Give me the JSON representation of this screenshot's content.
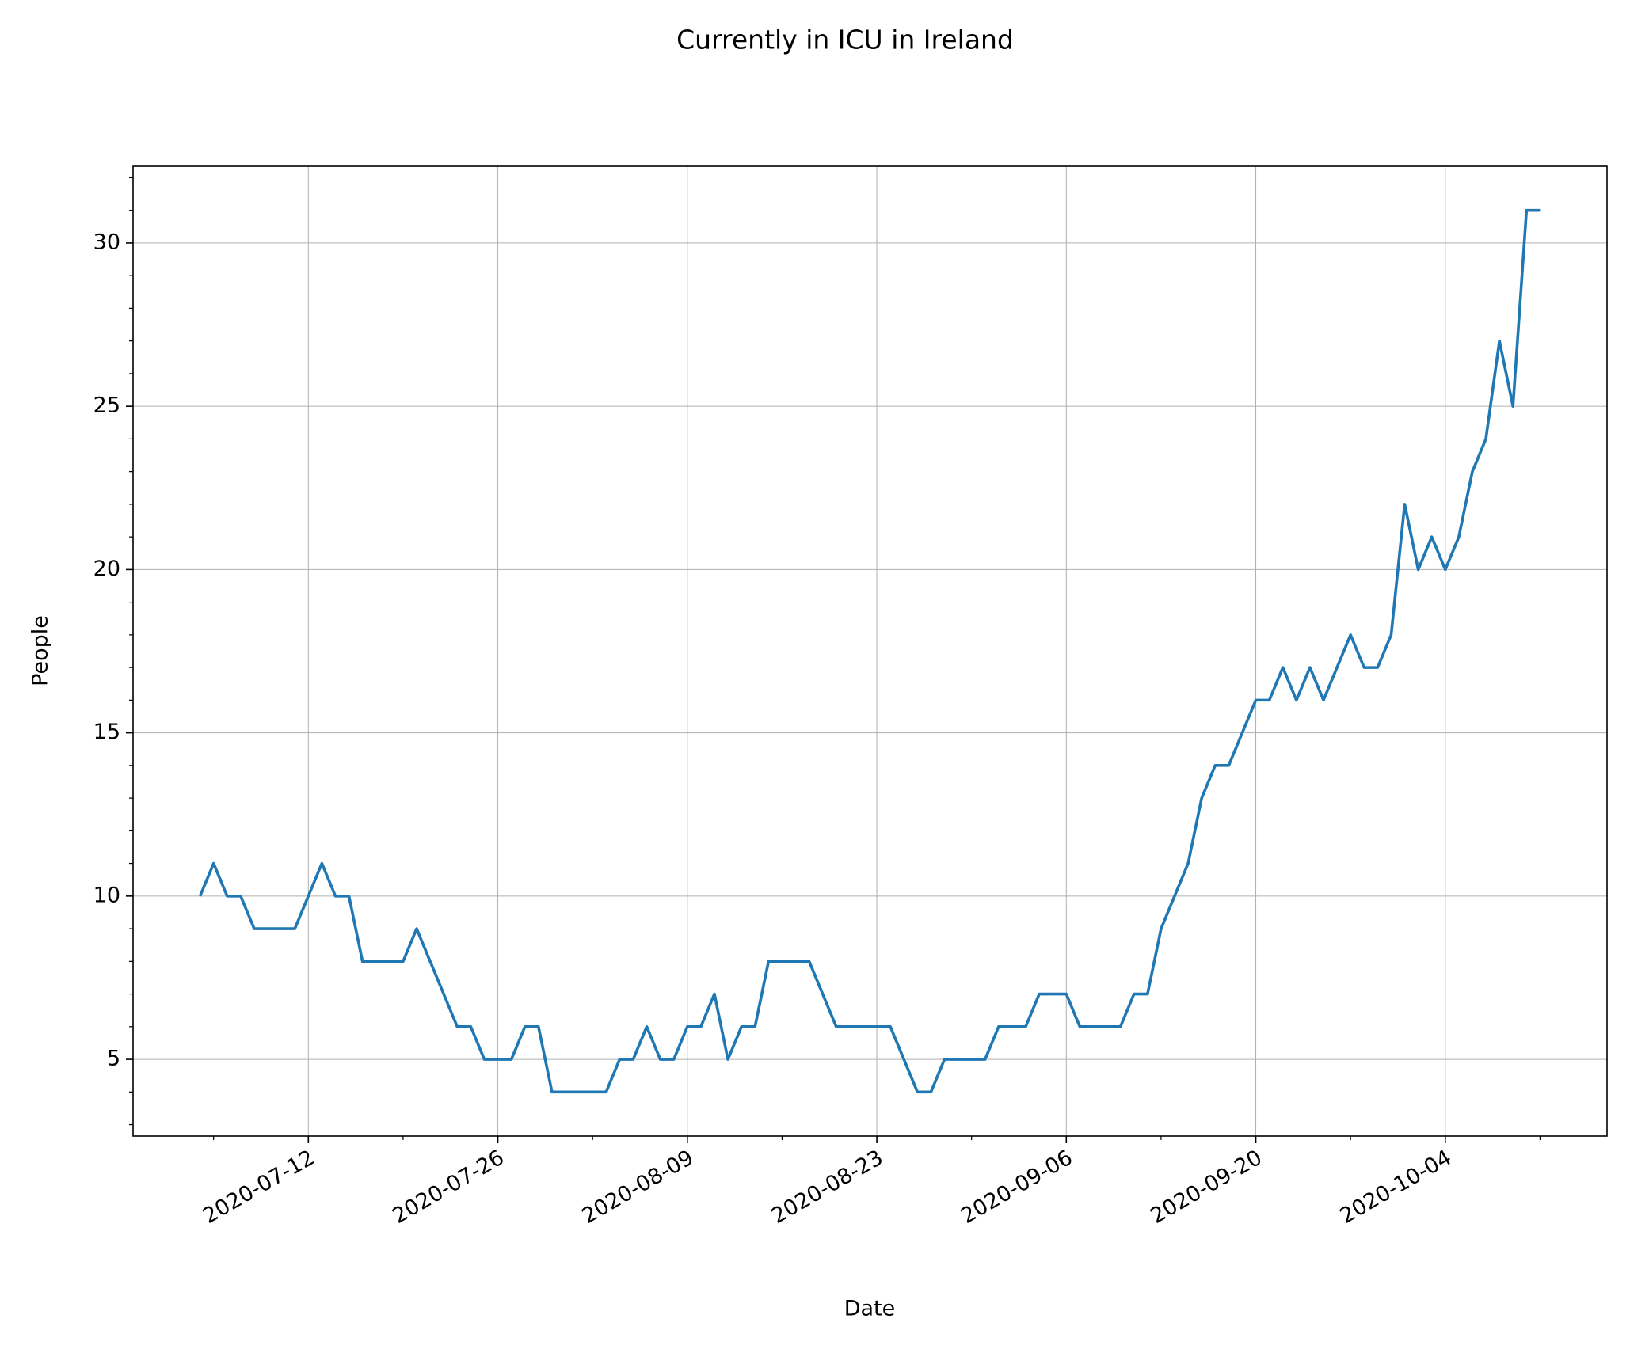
{
  "chart_data": {
    "type": "line",
    "title": "Currently in ICU in Ireland",
    "xlabel": "Date",
    "ylabel": "People",
    "x": [
      "2020-07-04",
      "2020-07-05",
      "2020-07-06",
      "2020-07-07",
      "2020-07-08",
      "2020-07-09",
      "2020-07-10",
      "2020-07-11",
      "2020-07-12",
      "2020-07-13",
      "2020-07-14",
      "2020-07-15",
      "2020-07-16",
      "2020-07-17",
      "2020-07-18",
      "2020-07-19",
      "2020-07-20",
      "2020-07-21",
      "2020-07-22",
      "2020-07-23",
      "2020-07-24",
      "2020-07-25",
      "2020-07-26",
      "2020-07-27",
      "2020-07-28",
      "2020-07-29",
      "2020-07-30",
      "2020-07-31",
      "2020-08-01",
      "2020-08-02",
      "2020-08-03",
      "2020-08-04",
      "2020-08-05",
      "2020-08-06",
      "2020-08-07",
      "2020-08-08",
      "2020-08-09",
      "2020-08-10",
      "2020-08-11",
      "2020-08-12",
      "2020-08-13",
      "2020-08-14",
      "2020-08-15",
      "2020-08-16",
      "2020-08-17",
      "2020-08-18",
      "2020-08-19",
      "2020-08-20",
      "2020-08-21",
      "2020-08-22",
      "2020-08-23",
      "2020-08-24",
      "2020-08-25",
      "2020-08-26",
      "2020-08-27",
      "2020-08-28",
      "2020-08-29",
      "2020-08-30",
      "2020-08-31",
      "2020-09-01",
      "2020-09-02",
      "2020-09-03",
      "2020-09-04",
      "2020-09-05",
      "2020-09-06",
      "2020-09-07",
      "2020-09-08",
      "2020-09-09",
      "2020-09-10",
      "2020-09-11",
      "2020-09-12",
      "2020-09-13",
      "2020-09-14",
      "2020-09-15",
      "2020-09-16",
      "2020-09-17",
      "2020-09-18",
      "2020-09-19",
      "2020-09-20",
      "2020-09-21",
      "2020-09-22",
      "2020-09-23",
      "2020-09-24",
      "2020-09-25",
      "2020-09-26",
      "2020-09-27",
      "2020-09-28",
      "2020-09-29",
      "2020-09-30",
      "2020-10-01",
      "2020-10-02",
      "2020-10-03",
      "2020-10-04",
      "2020-10-05",
      "2020-10-06",
      "2020-10-07",
      "2020-10-08",
      "2020-10-09",
      "2020-10-10",
      "2020-10-11"
    ],
    "values": [
      10,
      11,
      10,
      10,
      9,
      9,
      9,
      9,
      10,
      11,
      10,
      10,
      8,
      8,
      8,
      8,
      9,
      8,
      7,
      6,
      6,
      5,
      5,
      5,
      6,
      6,
      4,
      4,
      4,
      4,
      4,
      5,
      5,
      6,
      5,
      5,
      6,
      6,
      7,
      5,
      6,
      6,
      8,
      8,
      8,
      8,
      7,
      6,
      6,
      6,
      6,
      6,
      5,
      4,
      4,
      5,
      5,
      5,
      5,
      6,
      6,
      6,
      7,
      7,
      7,
      6,
      6,
      6,
      6,
      7,
      7,
      9,
      10,
      11,
      13,
      14,
      14,
      15,
      16,
      16,
      17,
      16,
      17,
      16,
      17,
      18,
      17,
      17,
      18,
      22,
      20,
      21,
      20,
      21,
      23,
      24,
      27,
      25,
      31,
      31
    ],
    "color": "#1f77b4",
    "xlim": [
      "2020-06-29T01:12",
      "2020-10-15T22:48"
    ],
    "xticks": [
      "2020-07-12",
      "2020-07-26",
      "2020-08-09",
      "2020-08-23",
      "2020-09-06",
      "2020-09-20",
      "2020-10-04"
    ],
    "xminorticks": [
      "2020-07-05",
      "2020-07-19",
      "2020-08-02",
      "2020-08-16",
      "2020-08-30",
      "2020-09-13",
      "2020-09-27",
      "2020-10-11"
    ],
    "ylim": [
      2.65,
      32.35
    ],
    "yticks": [
      5,
      10,
      15,
      20,
      25,
      30
    ],
    "yminorticks": [
      3,
      4,
      6,
      7,
      8,
      9,
      11,
      12,
      13,
      14,
      16,
      17,
      18,
      19,
      21,
      22,
      23,
      24,
      26,
      27,
      28,
      29,
      31,
      32
    ],
    "grid": true
  }
}
